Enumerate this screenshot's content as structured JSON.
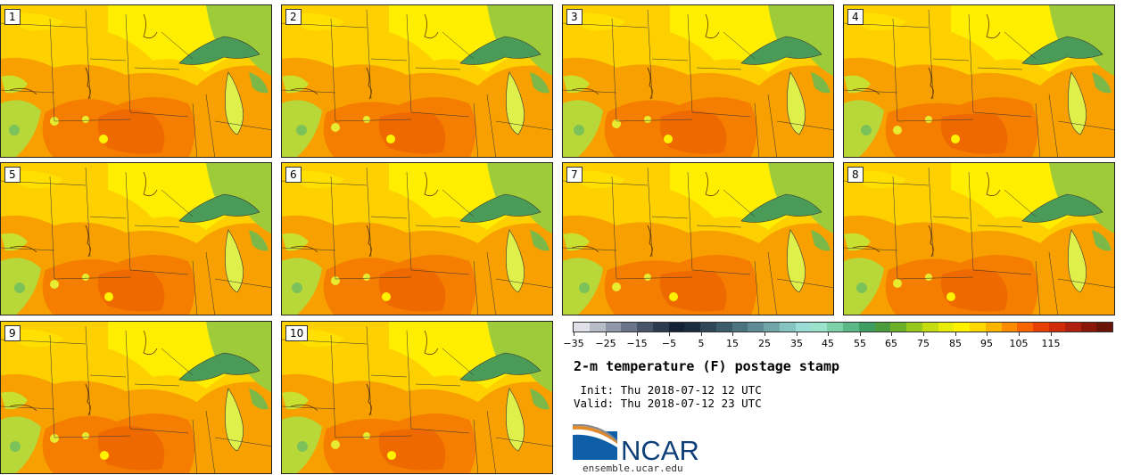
{
  "panels": [
    {
      "label": "1"
    },
    {
      "label": "2"
    },
    {
      "label": "3"
    },
    {
      "label": "4"
    },
    {
      "label": "5"
    },
    {
      "label": "6"
    },
    {
      "label": "7"
    },
    {
      "label": "8"
    },
    {
      "label": "9"
    },
    {
      "label": "10"
    }
  ],
  "title": "2-m temperature (F) postage stamp",
  "init": " Init: Thu 2018-07-12 12 UTC",
  "valid": "Valid: Thu 2018-07-12 23 UTC",
  "logo_text": "NCAR",
  "site": "ensemble.ucar.edu",
  "colorbar": {
    "tick_labels": [
      "−35",
      "−25",
      "−15",
      "−5",
      "5",
      "15",
      "25",
      "35",
      "45",
      "55",
      "65",
      "75",
      "85",
      "95",
      "105",
      "115"
    ],
    "colors": [
      "#e0e0e8",
      "#b8bcc8",
      "#9097a8",
      "#6a7488",
      "#48546a",
      "#2c3a50",
      "#142034",
      "#1c2c40",
      "#2e4658",
      "#3c5c6c",
      "#4c7480",
      "#5e8c94",
      "#70a6a8",
      "#86c4c2",
      "#9adcd6",
      "#9be2cc",
      "#7ed0a8",
      "#5cb886",
      "#3e9e62",
      "#4a9c3c",
      "#6cb02a",
      "#98c81a",
      "#c4dc10",
      "#e8ec08",
      "#fff200",
      "#ffd800",
      "#ffb400",
      "#ff8c00",
      "#f86400",
      "#e84000",
      "#d02c0a",
      "#b0200e",
      "#8a1808",
      "#6a1408"
    ]
  }
}
